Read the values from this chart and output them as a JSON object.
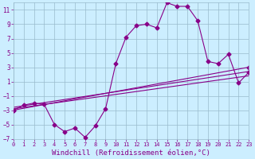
{
  "xlabel": "Windchill (Refroidissement éolien,°C)",
  "bg_color": "#cceeff",
  "grid_color": "#99bbcc",
  "line_color": "#880088",
  "xlim": [
    0,
    23
  ],
  "ylim": [
    -7,
    12
  ],
  "yticks": [
    -7,
    -5,
    -3,
    -1,
    1,
    3,
    5,
    7,
    9,
    11
  ],
  "xticks": [
    0,
    1,
    2,
    3,
    4,
    5,
    6,
    7,
    8,
    9,
    10,
    11,
    12,
    13,
    14,
    15,
    16,
    17,
    18,
    19,
    20,
    21,
    22,
    23
  ],
  "curve1_x": [
    0,
    1,
    2,
    3,
    4,
    5,
    6,
    7,
    8,
    9,
    10,
    11,
    12,
    13,
    14,
    15,
    16,
    17,
    18,
    19,
    20,
    21,
    22,
    23
  ],
  "curve1_y": [
    -3.0,
    -2.3,
    -2.0,
    -2.2,
    -5.0,
    -6.0,
    -5.5,
    -6.8,
    -5.2,
    -2.8,
    3.5,
    7.2,
    8.8,
    9.0,
    8.5,
    12.0,
    11.5,
    11.5,
    9.5,
    3.8,
    3.5,
    4.8,
    0.8,
    2.3
  ],
  "line1_x": [
    0,
    23
  ],
  "line1_y": [
    -3.0,
    3.0
  ],
  "line2_x": [
    0,
    23
  ],
  "line2_y": [
    -2.8,
    1.8
  ],
  "line3_x": [
    0,
    23
  ],
  "line3_y": [
    -2.6,
    2.4
  ],
  "font_size_xlabel": 6.5,
  "tick_font_size_x": 5.0,
  "tick_font_size_y": 5.5,
  "marker": "D",
  "marker_size": 2.5,
  "linewidth": 0.8
}
